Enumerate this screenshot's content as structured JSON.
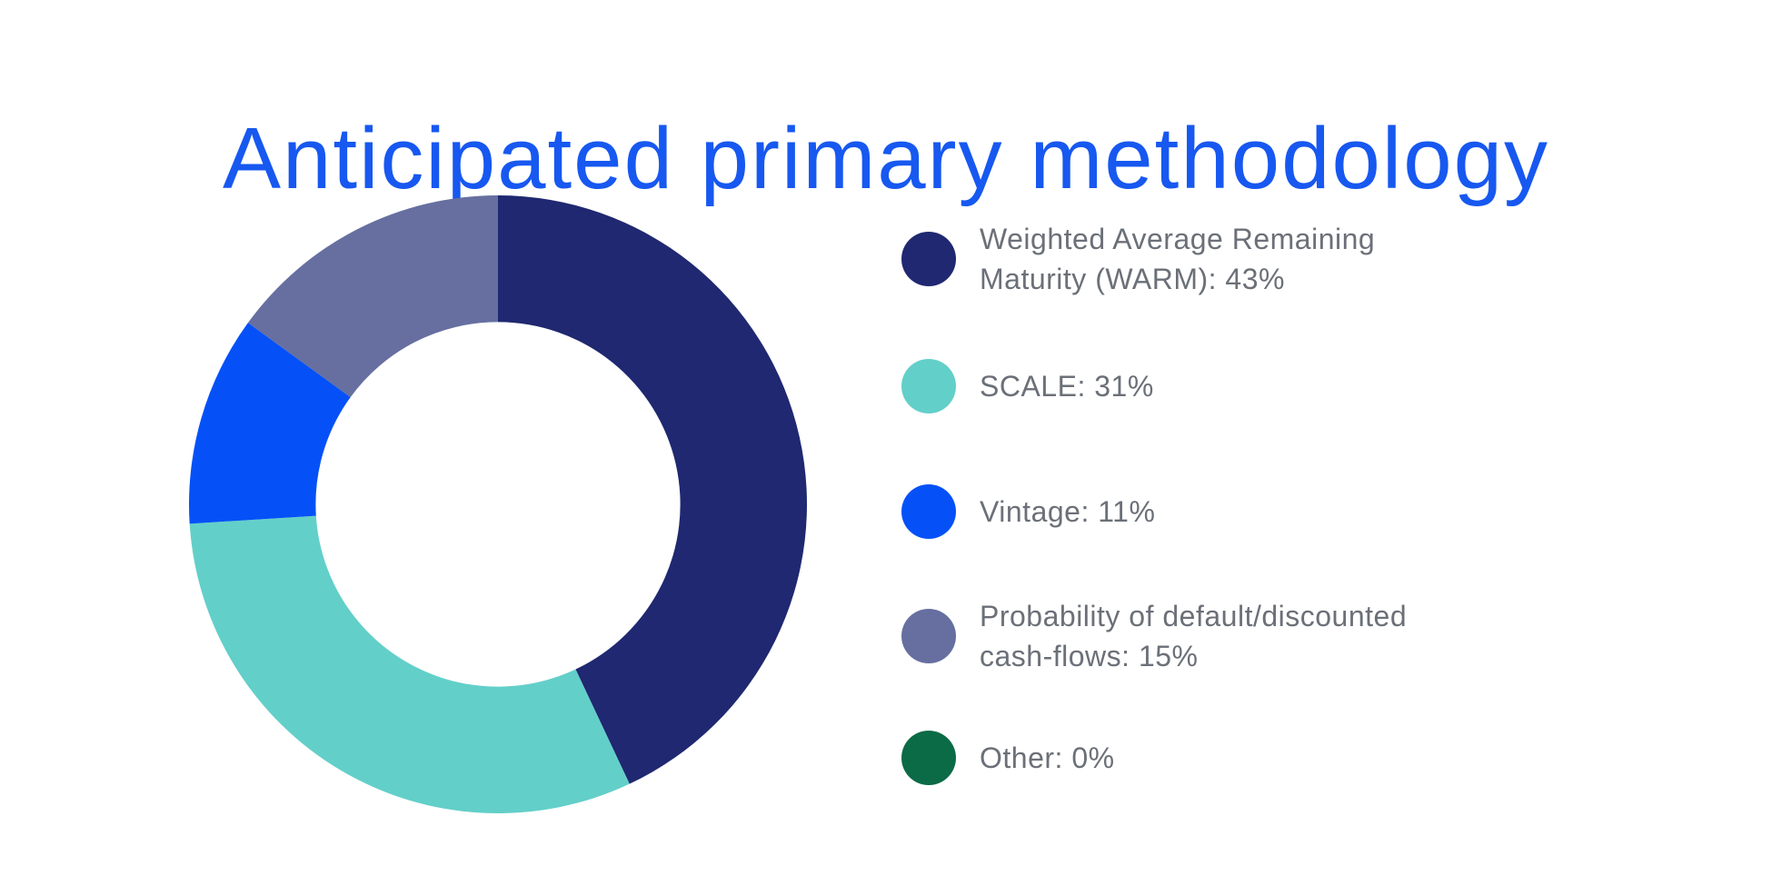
{
  "title": {
    "text": "Anticipated primary methodology",
    "color": "#1758F0"
  },
  "chart_data": {
    "type": "pie",
    "subtype": "donut",
    "title": "Anticipated primary methodology",
    "categories": [
      "Weighted Average Remaining Maturity (WARM)",
      "SCALE",
      "Vintage",
      "Probability of default/discounted cash-flows",
      "Other"
    ],
    "values": [
      43,
      31,
      11,
      15,
      0
    ],
    "unit": "%",
    "colors": [
      "#1F2870",
      "#63CFC9",
      "#0551F7",
      "#666FA0",
      "#0B6B46"
    ],
    "start_angle_deg": 0,
    "direction": "clockwise",
    "inner_radius_ratio": 0.59,
    "grid": false,
    "legend_position": "right",
    "data_labels_on_slices": false
  },
  "legend": {
    "text_color": "#6B7078",
    "items": [
      {
        "key": "warm",
        "line1": "Weighted Average Remaining",
        "line2": "Maturity (WARM): 43%",
        "color": "#1F2870",
        "value_pct": 43
      },
      {
        "key": "scale",
        "line1": "SCALE: 31%",
        "line2": "",
        "color": "#63CFC9",
        "value_pct": 31
      },
      {
        "key": "vintage",
        "line1": "Vintage: 11%",
        "line2": "",
        "color": "#0551F7",
        "value_pct": 11
      },
      {
        "key": "pd-dcf",
        "line1": "Probability of default/discounted",
        "line2": "cash-flows: 15%",
        "color": "#666FA0",
        "value_pct": 15
      },
      {
        "key": "other",
        "line1": "Other: 0%",
        "line2": "",
        "color": "#0B6B46",
        "value_pct": 0
      }
    ]
  }
}
